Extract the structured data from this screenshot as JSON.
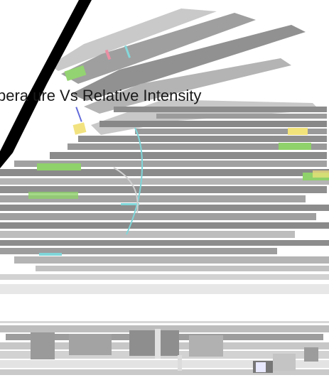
{
  "image": {
    "title_text_visible": "pera ure Vs Relative Intensity",
    "background_color": "#ffffff",
    "streak_colors": {
      "gray": "#8c8c8c",
      "light_gray": "#bdbdbd",
      "green": "#8fd16a",
      "yellow": "#f2e27a",
      "cyan": "#7fd6d9",
      "blue": "#5a63d8",
      "pink": "#e98aa0",
      "black": "#000000"
    }
  }
}
